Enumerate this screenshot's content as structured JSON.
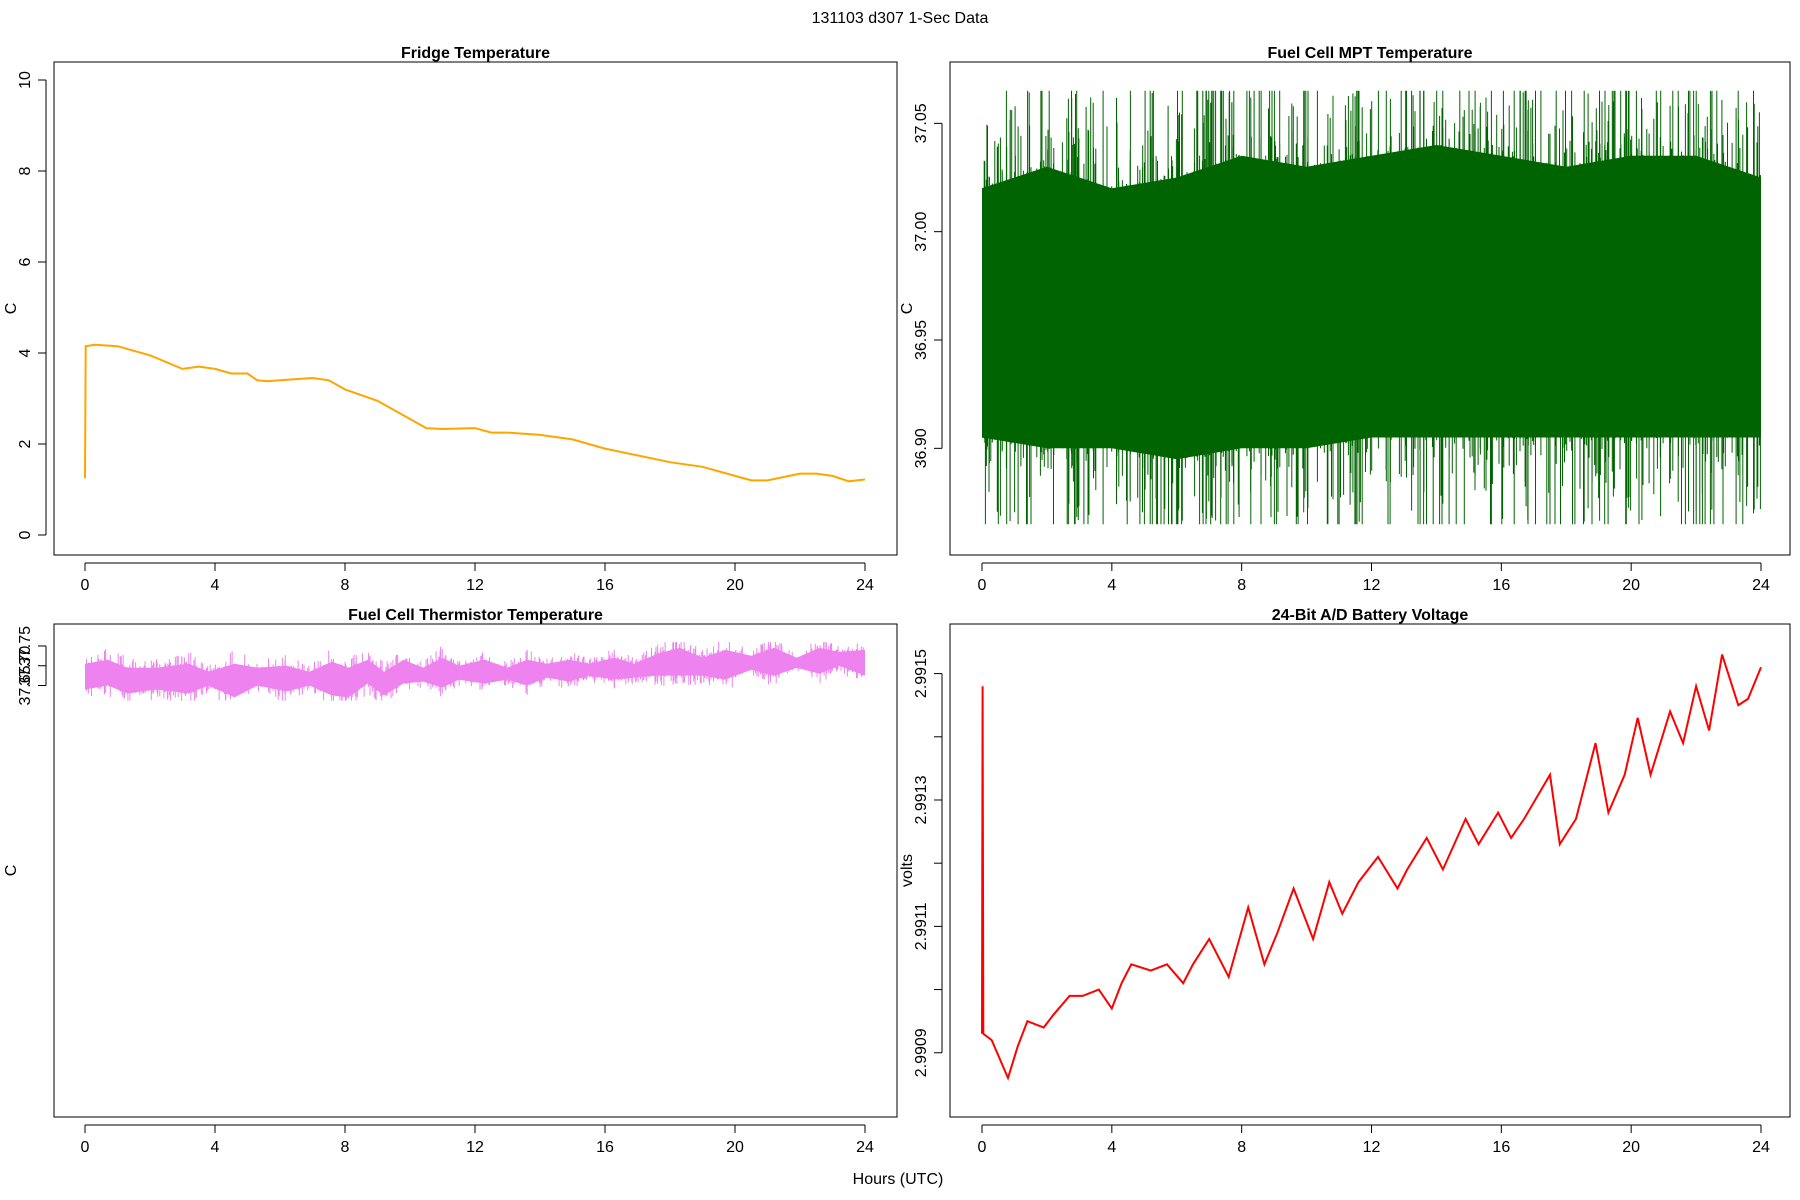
{
  "main_title": "131103   d307   1-Sec Data",
  "x_axis_label": "Hours (UTC)",
  "chart_data": [
    {
      "type": "line",
      "title": "Fridge Temperature",
      "ylabel": "C",
      "xlim": [
        0,
        24
      ],
      "ylim": [
        0,
        10
      ],
      "x_ticks": [
        0,
        4,
        8,
        12,
        16,
        20,
        24
      ],
      "y_ticks": [
        0,
        2,
        4,
        6,
        8,
        10
      ],
      "y_tick_labels": [
        "0",
        "2",
        "4",
        "6",
        "8",
        "10"
      ],
      "color": "#ffa500",
      "series": [
        {
          "x": [
            0,
            0.02,
            0.3,
            1,
            2,
            3,
            3.5,
            4,
            4.5,
            4.8,
            5,
            5.3,
            5.6,
            6,
            7,
            7.5,
            8,
            9,
            10,
            10.5,
            11,
            12,
            12.5,
            13,
            14,
            15,
            16,
            17,
            18,
            19,
            20,
            20.5,
            21,
            22,
            22.5,
            23,
            23.5,
            24
          ],
          "y": [
            1.25,
            4.15,
            4.18,
            4.15,
            3.95,
            3.65,
            3.7,
            3.65,
            3.55,
            3.55,
            3.55,
            3.4,
            3.38,
            3.4,
            3.45,
            3.4,
            3.2,
            2.95,
            2.55,
            2.35,
            2.33,
            2.35,
            2.25,
            2.25,
            2.2,
            2.1,
            1.9,
            1.75,
            1.6,
            1.5,
            1.3,
            1.2,
            1.2,
            1.35,
            1.35,
            1.3,
            1.18,
            1.22
          ]
        }
      ]
    },
    {
      "type": "line",
      "title": "Fuel Cell MPT Temperature",
      "ylabel": "C",
      "xlim": [
        0,
        24
      ],
      "ylim": [
        36.86,
        37.07
      ],
      "x_ticks": [
        0,
        4,
        8,
        12,
        16,
        20,
        24
      ],
      "y_ticks": [
        36.9,
        36.95,
        37.0,
        37.05
      ],
      "y_tick_labels": [
        "36.90",
        "36.95",
        "37.00",
        "37.05"
      ],
      "color": "#006400",
      "series": [
        {
          "x": [
            0,
            2,
            4,
            6,
            8,
            10,
            12,
            14,
            16,
            18,
            20,
            22,
            24
          ],
          "y_mid": [
            36.965,
            36.965,
            36.965,
            36.965,
            36.965,
            36.965,
            36.966,
            36.966,
            36.966,
            36.966,
            36.966,
            36.966,
            36.966
          ],
          "y_low": [
            36.905,
            36.9,
            36.9,
            36.895,
            36.9,
            36.9,
            36.905,
            36.905,
            36.905,
            36.905,
            36.905,
            36.905,
            36.905
          ],
          "y_high": [
            37.02,
            37.03,
            37.02,
            37.025,
            37.035,
            37.03,
            37.035,
            37.04,
            37.035,
            37.03,
            37.035,
            37.035,
            37.025
          ],
          "y_min": 36.865,
          "y_max": 37.065
        }
      ]
    },
    {
      "type": "line",
      "title": "Fuel Cell Thermistor Temperature",
      "ylabel": "C",
      "xlim": [
        0,
        24
      ],
      "ylim": [
        36.61,
        37.76
      ],
      "x_ticks": [
        0,
        4,
        8,
        12,
        16,
        20,
        24
      ],
      "y_ticks": [
        37.65,
        37.7,
        37.75
      ],
      "y_tick_labels": [
        "37.65",
        "37.70",
        "37.75"
      ],
      "color": "#ee82ee",
      "series": [
        {
          "x": [
            0,
            0.7,
            1.3,
            2.2,
            3.2,
            3.8,
            4.6,
            5.3,
            6.2,
            6.9,
            7.6,
            8.1,
            8.7,
            9.2,
            9.8,
            10.4,
            11.0,
            11.5,
            12.3,
            13.0,
            13.6,
            14.2,
            14.9,
            15.5,
            16.3,
            16.9,
            17.6,
            18.3,
            19.0,
            19.7,
            20.5,
            21.2,
            21.9,
            22.6,
            23.2,
            24
          ],
          "y_low": [
            37.64,
            37.65,
            37.63,
            37.64,
            37.63,
            37.65,
            37.62,
            37.65,
            37.635,
            37.65,
            37.625,
            37.62,
            37.655,
            37.625,
            37.655,
            37.66,
            37.645,
            37.665,
            37.655,
            37.665,
            37.65,
            37.67,
            37.66,
            37.675,
            37.665,
            37.67,
            37.675,
            37.675,
            37.675,
            37.665,
            37.69,
            37.675,
            37.695,
            37.68,
            37.7,
            37.675
          ],
          "y_high": [
            37.705,
            37.715,
            37.695,
            37.695,
            37.705,
            37.685,
            37.705,
            37.695,
            37.7,
            37.685,
            37.71,
            37.695,
            37.715,
            37.685,
            37.715,
            37.695,
            37.72,
            37.7,
            37.715,
            37.695,
            37.715,
            37.705,
            37.715,
            37.705,
            37.72,
            37.705,
            37.73,
            37.745,
            37.72,
            37.74,
            37.725,
            37.745,
            37.72,
            37.745,
            37.735,
            37.74
          ],
          "y_min": 37.612,
          "y_max": 37.76
        }
      ]
    },
    {
      "type": "line",
      "title": "24-Bit A/D Battery Voltage",
      "ylabel": "volts",
      "xlim": [
        0,
        24
      ],
      "ylim": [
        2.99083,
        2.99155
      ],
      "x_ticks": [
        0,
        4,
        8,
        12,
        16,
        20,
        24
      ],
      "y_ticks": [
        2.9909,
        2.991,
        2.9911,
        2.9912,
        2.9913,
        2.9914,
        2.9915
      ],
      "y_tick_labels": [
        "2.9909",
        "",
        "2.9911",
        "",
        "2.9913",
        "",
        "2.9915"
      ],
      "color": "#ff0000",
      "series": [
        {
          "x": [
            0,
            0.02,
            0.04,
            0.3,
            0.8,
            1.1,
            1.4,
            1.9,
            2.2,
            2.7,
            3.1,
            3.6,
            4.0,
            4.3,
            4.6,
            5.2,
            5.7,
            6.2,
            6.5,
            7.0,
            7.6,
            8.2,
            8.7,
            9.1,
            9.6,
            10.2,
            10.7,
            11.1,
            11.6,
            12.2,
            12.8,
            13.1,
            13.7,
            14.2,
            14.9,
            15.3,
            15.9,
            16.3,
            16.7,
            17.5,
            17.8,
            18.3,
            18.9,
            19.3,
            19.8,
            20.2,
            20.6,
            21.2,
            21.6,
            22.0,
            22.4,
            22.8,
            23.3,
            23.6,
            24.0
          ],
          "y": [
            2.99093,
            2.99148,
            2.99093,
            2.99092,
            2.99086,
            2.99091,
            2.99095,
            2.99094,
            2.99096,
            2.99099,
            2.99099,
            2.991,
            2.99097,
            2.99101,
            2.99104,
            2.99103,
            2.99104,
            2.99101,
            2.99104,
            2.99108,
            2.99102,
            2.99113,
            2.99104,
            2.99109,
            2.99116,
            2.99108,
            2.99117,
            2.99112,
            2.99117,
            2.99121,
            2.99116,
            2.99119,
            2.99124,
            2.99119,
            2.99127,
            2.99123,
            2.99128,
            2.99124,
            2.99127,
            2.99134,
            2.99123,
            2.99127,
            2.99139,
            2.99128,
            2.99134,
            2.99143,
            2.99134,
            2.99144,
            2.99139,
            2.99148,
            2.99141,
            2.99153,
            2.99145,
            2.99146,
            2.99151
          ]
        }
      ]
    }
  ]
}
